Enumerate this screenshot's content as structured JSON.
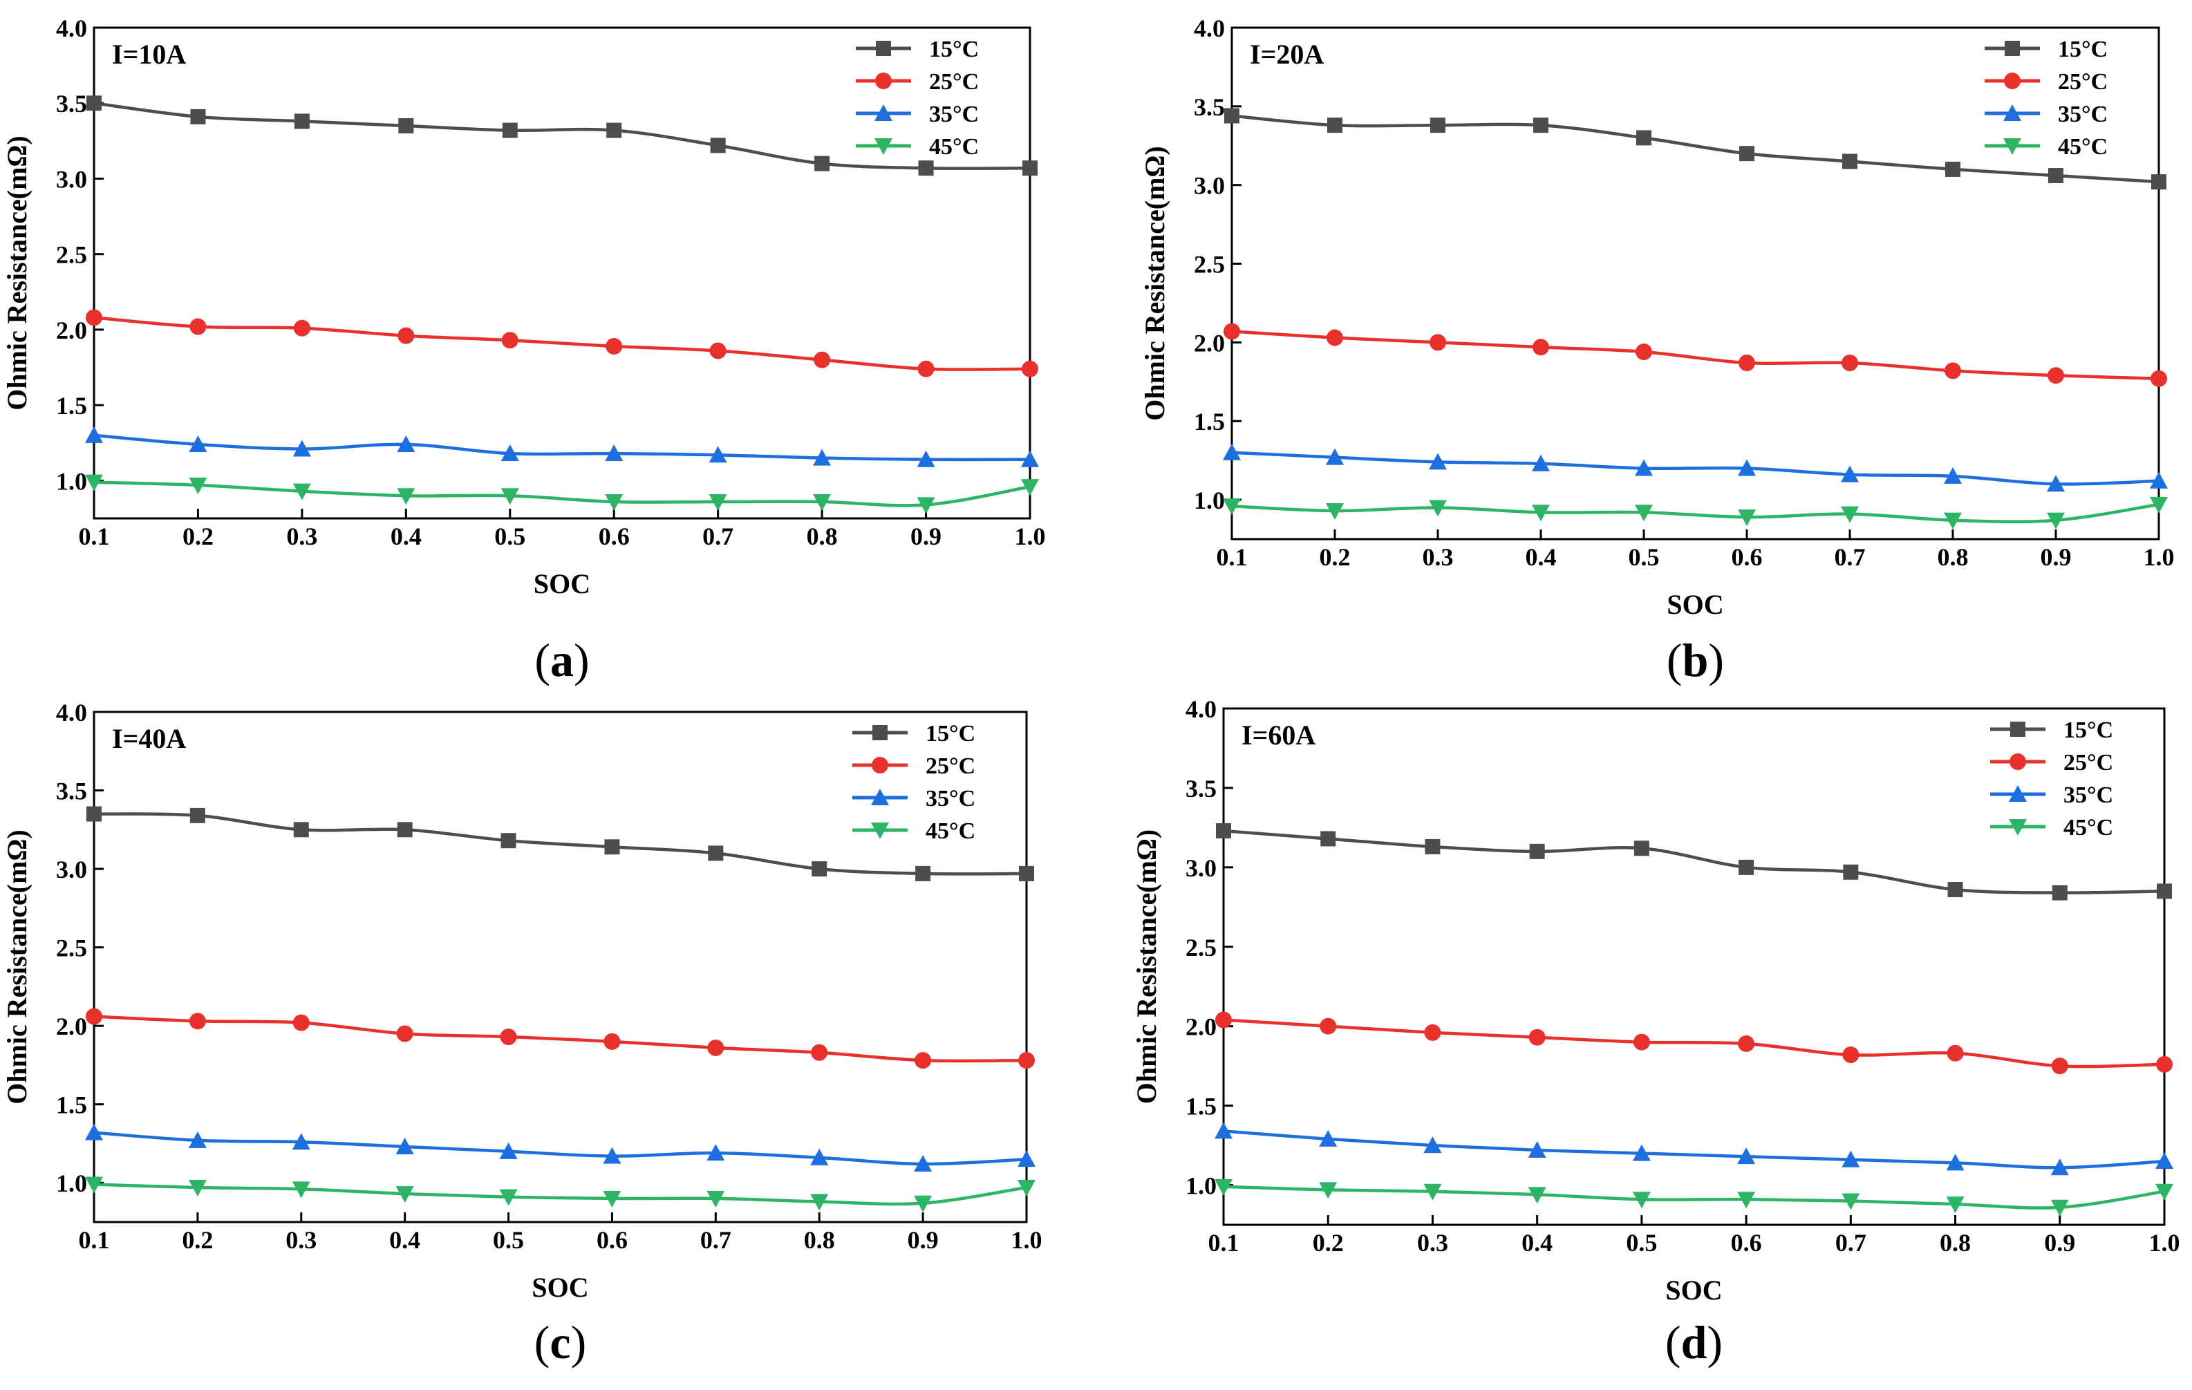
{
  "series_styles": [
    {
      "name": "15°C",
      "color": "#4d4d4d",
      "marker": "square"
    },
    {
      "name": "25°C",
      "color": "#e8302d",
      "marker": "circle"
    },
    {
      "name": "35°C",
      "color": "#1d6fe0",
      "marker": "triangle-up"
    },
    {
      "name": "45°C",
      "color": "#2db565",
      "marker": "triangle-down"
    }
  ],
  "chart_data": [
    {
      "type": "line",
      "panel": "a",
      "caption": {
        "open": "(",
        "letter": "a",
        "close": ")"
      },
      "annotation": "I=10A",
      "xlabel": "SOC",
      "ylabel": "Ohmic Resistance(mΩ)",
      "xlim": [
        0.1,
        1.0
      ],
      "ylim": [
        0.75,
        4.0
      ],
      "x_ticks": [
        "0.1",
        "0.2",
        "0.3",
        "0.4",
        "0.5",
        "0.6",
        "0.7",
        "0.8",
        "0.9",
        "1.0"
      ],
      "y_ticks": [
        "1.0",
        "1.5",
        "2.0",
        "2.5",
        "3.0",
        "3.5",
        "4.0"
      ],
      "x": [
        0.1,
        0.2,
        0.3,
        0.4,
        0.5,
        0.6,
        0.7,
        0.8,
        0.9,
        1.0
      ],
      "legend_position": "top-right",
      "series": [
        {
          "name": "15°C",
          "values": [
            3.5,
            3.41,
            3.38,
            3.35,
            3.32,
            3.32,
            3.22,
            3.1,
            3.07,
            3.07
          ]
        },
        {
          "name": "25°C",
          "values": [
            2.08,
            2.02,
            2.01,
            1.96,
            1.93,
            1.89,
            1.86,
            1.8,
            1.74,
            1.74
          ]
        },
        {
          "name": "35°C",
          "values": [
            1.3,
            1.24,
            1.21,
            1.24,
            1.18,
            1.18,
            1.17,
            1.15,
            1.14,
            1.14
          ]
        },
        {
          "name": "45°C",
          "values": [
            0.99,
            0.97,
            0.93,
            0.9,
            0.9,
            0.86,
            0.86,
            0.86,
            0.84,
            0.96
          ]
        }
      ]
    },
    {
      "type": "line",
      "panel": "b",
      "caption": {
        "open": "(",
        "letter": "b",
        "close": ")"
      },
      "annotation": "I=20A",
      "xlabel": "SOC",
      "ylabel": "Ohmic Resistance(mΩ)",
      "xlim": [
        0.1,
        1.0
      ],
      "ylim": [
        0.75,
        4.0
      ],
      "x_ticks": [
        "0.1",
        "0.2",
        "0.3",
        "0.4",
        "0.5",
        "0.6",
        "0.7",
        "0.8",
        "0.9",
        "1.0"
      ],
      "y_ticks": [
        "1.0",
        "1.5",
        "2.0",
        "2.5",
        "3.0",
        "3.5",
        "4.0"
      ],
      "x": [
        0.1,
        0.2,
        0.3,
        0.4,
        0.5,
        0.6,
        0.7,
        0.8,
        0.9,
        1.0
      ],
      "legend_position": "top-right",
      "series": [
        {
          "name": "15°C",
          "values": [
            3.44,
            3.38,
            3.38,
            3.38,
            3.3,
            3.2,
            3.15,
            3.1,
            3.06,
            3.02
          ]
        },
        {
          "name": "25°C",
          "values": [
            2.07,
            2.03,
            2.0,
            1.97,
            1.94,
            1.87,
            1.87,
            1.82,
            1.79,
            1.77
          ]
        },
        {
          "name": "35°C",
          "values": [
            1.3,
            1.27,
            1.24,
            1.23,
            1.2,
            1.2,
            1.16,
            1.15,
            1.1,
            1.12
          ]
        },
        {
          "name": "45°C",
          "values": [
            0.96,
            0.93,
            0.95,
            0.92,
            0.92,
            0.89,
            0.91,
            0.87,
            0.87,
            0.97
          ]
        }
      ]
    },
    {
      "type": "line",
      "panel": "c",
      "caption": {
        "open": "(",
        "letter": "c",
        "close": ")"
      },
      "annotation": "I=40A",
      "xlabel": "SOC",
      "ylabel": "Ohmic Resistance(mΩ)",
      "xlim": [
        0.1,
        1.0
      ],
      "ylim": [
        0.75,
        4.0
      ],
      "x_ticks": [
        "0.1",
        "0.2",
        "0.3",
        "0.4",
        "0.5",
        "0.6",
        "0.7",
        "0.8",
        "0.9",
        "1.0"
      ],
      "y_ticks": [
        "1.0",
        "1.5",
        "2.0",
        "2.5",
        "3.0",
        "3.5",
        "4.0"
      ],
      "x": [
        0.1,
        0.2,
        0.3,
        0.4,
        0.5,
        0.6,
        0.7,
        0.8,
        0.9,
        1.0
      ],
      "legend_position": "top-right",
      "series": [
        {
          "name": "15°C",
          "values": [
            3.35,
            3.34,
            3.25,
            3.25,
            3.18,
            3.14,
            3.1,
            3.0,
            2.97,
            2.97
          ]
        },
        {
          "name": "25°C",
          "values": [
            2.06,
            2.03,
            2.02,
            1.95,
            1.93,
            1.9,
            1.86,
            1.83,
            1.78,
            1.78
          ]
        },
        {
          "name": "35°C",
          "values": [
            1.32,
            1.27,
            1.26,
            1.23,
            1.2,
            1.17,
            1.19,
            1.16,
            1.12,
            1.15
          ]
        },
        {
          "name": "45°C",
          "values": [
            0.99,
            0.97,
            0.96,
            0.93,
            0.91,
            0.9,
            0.9,
            0.88,
            0.87,
            0.97
          ]
        }
      ]
    },
    {
      "type": "line",
      "panel": "d",
      "caption": {
        "open": "(",
        "letter": "d",
        "close": ")"
      },
      "annotation": "I=60A",
      "xlabel": "SOC",
      "ylabel": "Ohmic Resistance(mΩ)",
      "xlim": [
        0.1,
        1.0
      ],
      "ylim": [
        0.75,
        4.0
      ],
      "x_ticks": [
        "0.1",
        "0.2",
        "0.3",
        "0.4",
        "0.5",
        "0.6",
        "0.7",
        "0.8",
        "0.9",
        "1.0"
      ],
      "y_ticks": [
        "1.0",
        "1.5",
        "2.0",
        "2.5",
        "3.0",
        "3.5",
        "4.0"
      ],
      "x": [
        0.1,
        0.2,
        0.3,
        0.4,
        0.5,
        0.6,
        0.7,
        0.8,
        0.9,
        1.0
      ],
      "legend_position": "top-right",
      "series": [
        {
          "name": "15°C",
          "values": [
            3.23,
            3.18,
            3.13,
            3.1,
            3.12,
            3.0,
            2.97,
            2.86,
            2.84,
            2.85
          ]
        },
        {
          "name": "25°C",
          "values": [
            2.04,
            2.0,
            1.96,
            1.93,
            1.9,
            1.89,
            1.82,
            1.83,
            1.75,
            1.76
          ]
        },
        {
          "name": "35°C",
          "values": [
            1.34,
            1.29,
            1.25,
            1.22,
            1.2,
            1.18,
            1.16,
            1.14,
            1.11,
            1.15
          ]
        },
        {
          "name": "45°C",
          "values": [
            0.99,
            0.97,
            0.96,
            0.94,
            0.91,
            0.91,
            0.9,
            0.88,
            0.86,
            0.96
          ]
        }
      ]
    }
  ]
}
